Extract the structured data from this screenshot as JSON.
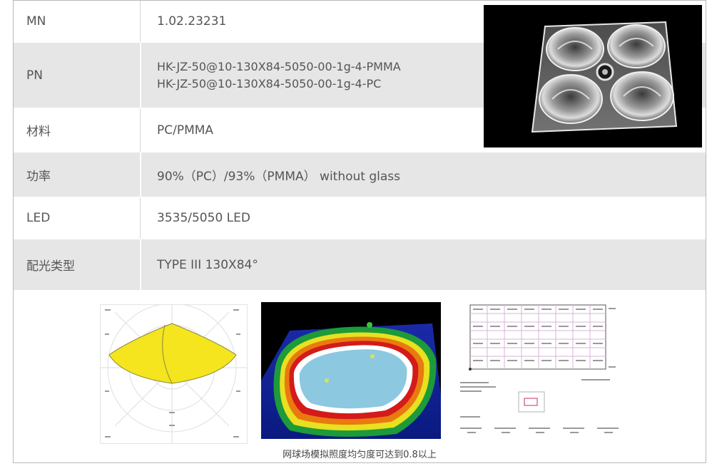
{
  "specs": [
    {
      "key": "MN",
      "value": [
        "1.02.23231"
      ]
    },
    {
      "key": "PN",
      "value": [
        "HK-JZ-50@10-130X84-5050-00-1g-4-PMMA",
        "HK-JZ-50@10-130X84-5050-00-1g-4-PC"
      ]
    },
    {
      "key": "材料",
      "value": [
        "PC/PMMA"
      ]
    },
    {
      "key": "功率",
      "value": [
        "90%（PC）/93%（PMMA） without glass"
      ]
    },
    {
      "key": "LED",
      "value": [
        "3535/5050 LED"
      ]
    },
    {
      "key": "配光类型",
      "value": [
        "TYPE III  130X84°"
      ]
    }
  ],
  "caption": "网球场模拟照度均匀度可达到0.8以上",
  "colors": {
    "row_alt": "#e6e6e6",
    "text": "#555555",
    "border": "#b9b9b9",
    "polar_fill": "#f4e51e",
    "heat_inner": "#8cc8e0"
  }
}
